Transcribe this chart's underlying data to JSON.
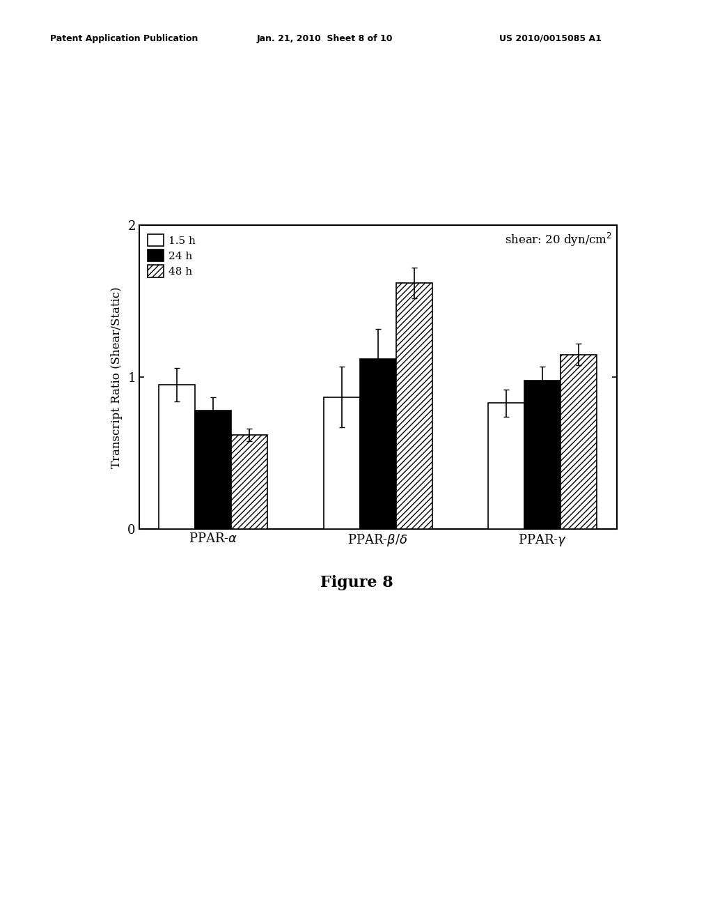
{
  "groups": [
    "PPAR-α",
    "PPAR-β/δ",
    "PPAR-γ"
  ],
  "series_labels": [
    "1.5 h",
    "24 h",
    "48 h"
  ],
  "values": [
    [
      0.95,
      0.78,
      0.62
    ],
    [
      0.87,
      1.12,
      1.62
    ],
    [
      0.83,
      0.98,
      1.15
    ]
  ],
  "errors": [
    [
      0.11,
      0.09,
      0.04
    ],
    [
      0.2,
      0.2,
      0.1
    ],
    [
      0.09,
      0.09,
      0.07
    ]
  ],
  "bar_colors": [
    "white",
    "black",
    "white"
  ],
  "bar_hatches": [
    "",
    "",
    "////"
  ],
  "ylabel": "Transcript Ratio (Shear/Static)",
  "title_annotation": "shear: 20 dyn/cm$^2$",
  "figure_label": "Figure 8",
  "ylim": [
    0,
    2
  ],
  "yticks": [
    0,
    1,
    2
  ],
  "bar_width": 0.22,
  "background_color": "#ffffff",
  "axes_linewidth": 1.5,
  "bar_edgecolor": "black",
  "error_capsize": 3,
  "error_linewidth": 1.2,
  "header_left": "Patent Application Publication",
  "header_mid": "Jan. 21, 2010  Sheet 8 of 10",
  "header_right": "US 2010/0015085 A1",
  "x_labels": [
    "PPAR-α",
    "PPAR-β/δ",
    "PPAR-γ"
  ]
}
